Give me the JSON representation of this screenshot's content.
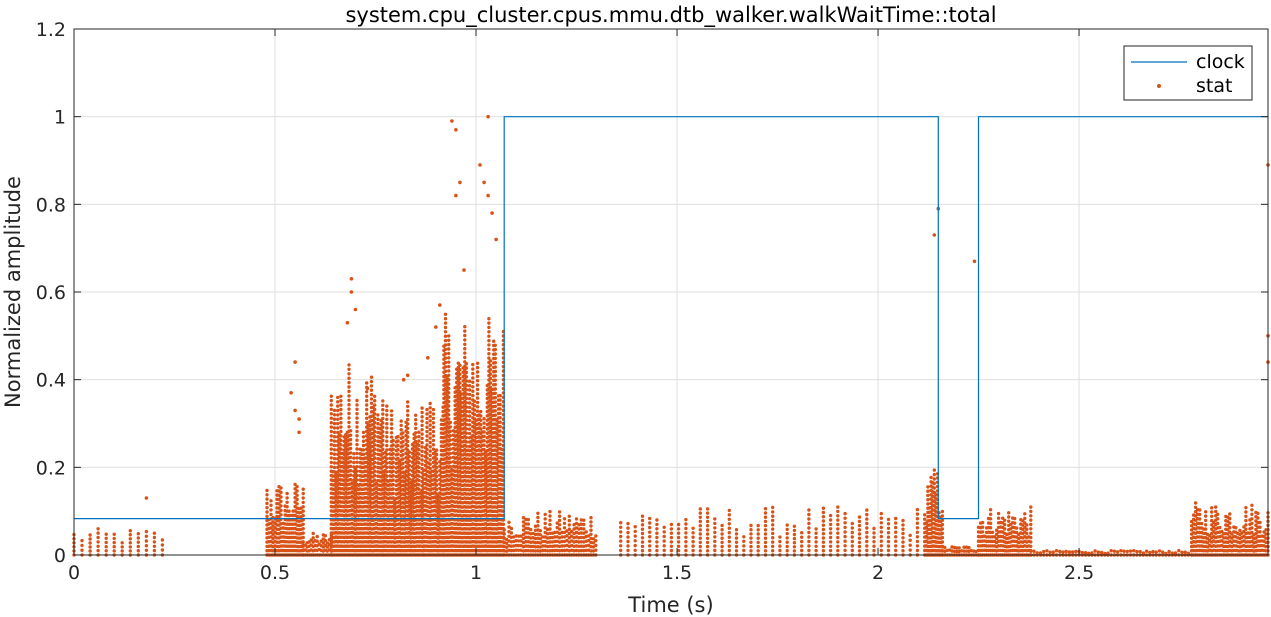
{
  "chart_data": {
    "type": "line",
    "title": "system.cpu_cluster.cpus.mmu.dtb_walker.walkWaitTime::total",
    "xlabel": "Time (s)",
    "ylabel": "Normalized amplitude",
    "xlim": [
      0,
      2.97
    ],
    "ylim": [
      0,
      1.2
    ],
    "x_ticks": [
      0,
      0.5,
      1,
      1.5,
      2,
      2.5
    ],
    "x_tick_labels": [
      "0",
      "0.5",
      "1",
      "1.5",
      "2",
      "2.5"
    ],
    "y_ticks": [
      0,
      0.2,
      0.4,
      0.6,
      0.8,
      1,
      1.2
    ],
    "y_tick_labels": [
      "0",
      "0.2",
      "0.4",
      "0.6",
      "0.8",
      "1",
      "1.2"
    ],
    "grid": true,
    "legend_position": "top-right",
    "colors": {
      "clock": "#0072BD",
      "stat": "#D95319"
    },
    "series": [
      {
        "name": "clock",
        "style": "step-line",
        "x": [
          0,
          1.07,
          1.07,
          2.15,
          2.15,
          2.25,
          2.25,
          2.97
        ],
        "y": [
          0.083,
          0.083,
          1,
          1,
          0.083,
          0.083,
          1,
          1
        ]
      },
      {
        "name": "stat",
        "style": "dots",
        "segments": [
          {
            "x_start": 0.0,
            "x_end": 0.22,
            "step": 0.02,
            "y_max": 0.06
          },
          {
            "x_start": 0.48,
            "x_end": 0.57,
            "step": 0.005,
            "y_max": 0.17
          },
          {
            "x_start": 0.57,
            "x_end": 0.64,
            "step": 0.005,
            "y_max": 0.05
          },
          {
            "x_start": 0.64,
            "x_end": 0.77,
            "step": 0.004,
            "y_max": 0.45
          },
          {
            "x_start": 0.77,
            "x_end": 0.87,
            "step": 0.004,
            "y_max": 0.35
          },
          {
            "x_start": 0.87,
            "x_end": 0.92,
            "step": 0.004,
            "y_max": 0.38
          },
          {
            "x_start": 0.92,
            "x_end": 1.07,
            "step": 0.004,
            "y_max": 0.55
          },
          {
            "x_start": 1.07,
            "x_end": 1.3,
            "step": 0.006,
            "y_max": 0.1
          },
          {
            "x_start": 1.36,
            "x_end": 2.12,
            "step": 0.018,
            "y_max": 0.11
          },
          {
            "x_start": 2.12,
            "x_end": 2.16,
            "step": 0.004,
            "y_max": 0.2
          },
          {
            "x_start": 2.16,
            "x_end": 2.25,
            "step": 0.006,
            "y_max": 0.02
          },
          {
            "x_start": 2.25,
            "x_end": 2.38,
            "step": 0.005,
            "y_max": 0.11
          },
          {
            "x_start": 2.38,
            "x_end": 2.78,
            "step": 0.008,
            "y_max": 0.01
          },
          {
            "x_start": 2.78,
            "x_end": 2.97,
            "step": 0.005,
            "y_max": 0.12
          }
        ],
        "outliers": [
          [
            0.18,
            0.13
          ],
          [
            0.55,
            0.44
          ],
          [
            0.54,
            0.37
          ],
          [
            0.55,
            0.33
          ],
          [
            0.56,
            0.31
          ],
          [
            0.56,
            0.28
          ],
          [
            0.69,
            0.63
          ],
          [
            0.69,
            0.6
          ],
          [
            0.7,
            0.56
          ],
          [
            0.68,
            0.53
          ],
          [
            0.73,
            0.38
          ],
          [
            0.82,
            0.4
          ],
          [
            0.83,
            0.41
          ],
          [
            0.88,
            0.45
          ],
          [
            0.9,
            0.52
          ],
          [
            0.91,
            0.57
          ],
          [
            0.94,
            0.99
          ],
          [
            0.95,
            0.97
          ],
          [
            0.96,
            0.85
          ],
          [
            0.95,
            0.82
          ],
          [
            0.97,
            0.65
          ],
          [
            1.01,
            0.89
          ],
          [
            1.02,
            0.85
          ],
          [
            1.03,
            1.0
          ],
          [
            1.03,
            0.82
          ],
          [
            1.04,
            0.78
          ],
          [
            1.05,
            0.72
          ],
          [
            2.15,
            0.79
          ],
          [
            2.14,
            0.73
          ],
          [
            2.24,
            0.67
          ],
          [
            2.97,
            0.89
          ],
          [
            2.97,
            0.5
          ],
          [
            2.97,
            0.44
          ]
        ]
      }
    ]
  }
}
